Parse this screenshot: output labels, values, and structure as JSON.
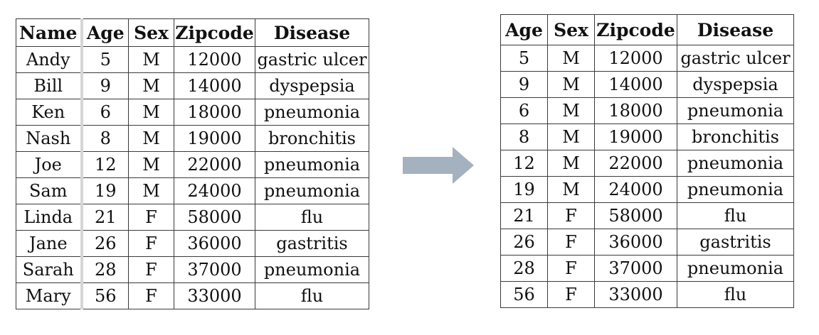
{
  "headers_original": [
    "Name",
    "Age",
    "Sex",
    "Zipcode",
    "Disease"
  ],
  "headers_anonymized": [
    "Age",
    "Sex",
    "Zipcode",
    "Disease"
  ],
  "rows": [
    {
      "name": "Andy",
      "age": "5",
      "sex": "M",
      "zipcode": "12000",
      "disease": "gastric ulcer"
    },
    {
      "name": "Bill",
      "age": "9",
      "sex": "M",
      "zipcode": "14000",
      "disease": "dyspepsia"
    },
    {
      "name": "Ken",
      "age": "6",
      "sex": "M",
      "zipcode": "18000",
      "disease": "pneumonia"
    },
    {
      "name": "Nash",
      "age": "8",
      "sex": "M",
      "zipcode": "19000",
      "disease": "bronchitis"
    },
    {
      "name": "Joe",
      "age": "12",
      "sex": "M",
      "zipcode": "22000",
      "disease": "pneumonia"
    },
    {
      "name": "Sam",
      "age": "19",
      "sex": "M",
      "zipcode": "24000",
      "disease": "pneumonia"
    },
    {
      "name": "Linda",
      "age": "21",
      "sex": "F",
      "zipcode": "58000",
      "disease": "flu"
    },
    {
      "name": "Jane",
      "age": "26",
      "sex": "F",
      "zipcode": "36000",
      "disease": "gastritis"
    },
    {
      "name": "Sarah",
      "age": "28",
      "sex": "F",
      "zipcode": "37000",
      "disease": "pneumonia"
    },
    {
      "name": "Mary",
      "age": "56",
      "sex": "F",
      "zipcode": "33000",
      "disease": "flu"
    }
  ],
  "colors": {
    "arrow": "#a4b1bf",
    "border": "#3a3a3a"
  },
  "icons": {
    "arrow": "right-arrow-icon"
  }
}
